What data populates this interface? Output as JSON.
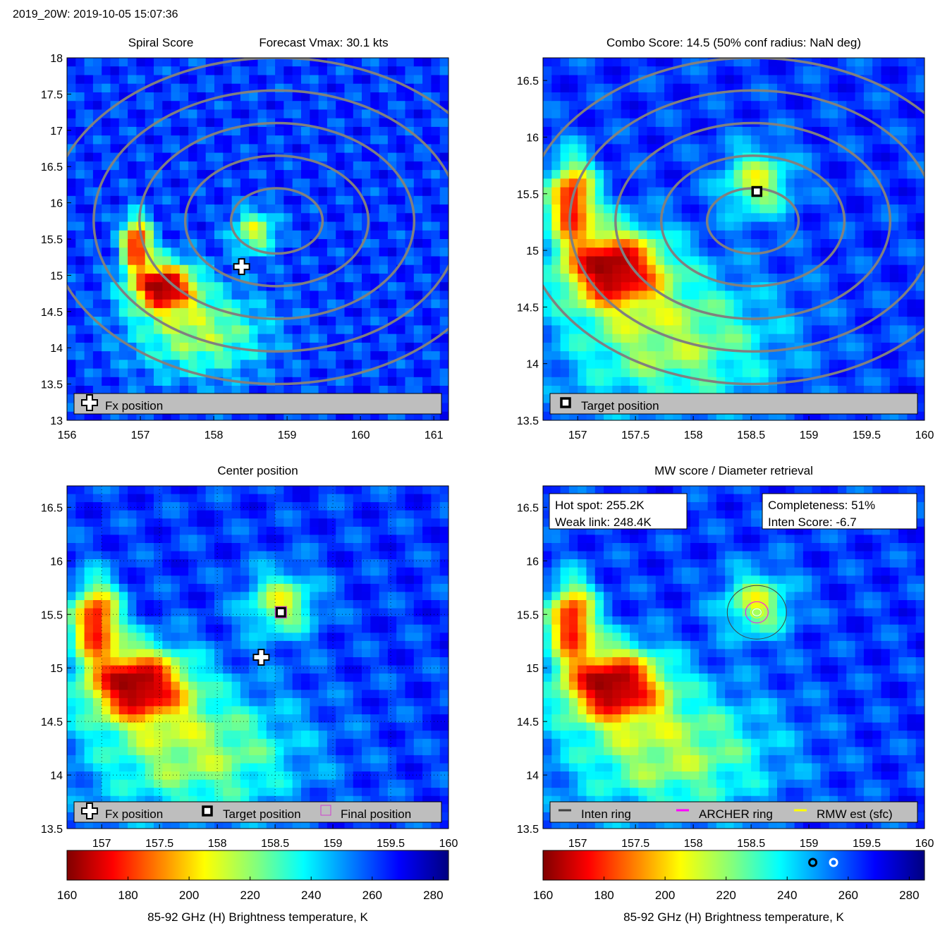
{
  "figure_title": "2019_20W: 2019-10-05 15:07:36",
  "colorbar_label": "85-92 GHz (H) Brightness temperature, K",
  "chart_data": [
    {
      "type": "heatmap",
      "title": "Spiral Score",
      "subtitle": "Forecast Vmax: 30.1 kts",
      "xlim": [
        156,
        161.2
      ],
      "ylim": [
        13,
        18
      ],
      "xticks": [
        156,
        157,
        158,
        159,
        160,
        161
      ],
      "yticks": [
        13,
        13.5,
        14,
        14.5,
        15,
        15.5,
        16,
        16.5,
        17,
        17.5,
        18
      ],
      "grid": false,
      "markers": [
        {
          "kind": "fx",
          "lon": 158.38,
          "lat": 15.12
        }
      ],
      "legend": [
        {
          "kind": "fx",
          "label": "Fx position"
        }
      ],
      "contours": true
    },
    {
      "type": "heatmap",
      "title": "Combo Score: 14.5  (50% conf radius: NaN deg)",
      "xlim": [
        156.7,
        160
      ],
      "ylim": [
        13.5,
        16.7
      ],
      "xticks": [
        157,
        157.5,
        158,
        158.5,
        159,
        159.5,
        160
      ],
      "yticks": [
        13.5,
        14,
        14.5,
        15,
        15.5,
        16,
        16.5
      ],
      "grid": false,
      "markers": [
        {
          "kind": "target",
          "lon": 158.55,
          "lat": 15.52
        }
      ],
      "legend": [
        {
          "kind": "target",
          "label": "Target position"
        }
      ],
      "contours": true
    },
    {
      "type": "heatmap",
      "title": "Center position",
      "xlim": [
        156.7,
        160
      ],
      "ylim": [
        13.5,
        16.7
      ],
      "xticks": [
        157,
        157.5,
        158,
        158.5,
        159,
        159.5,
        160
      ],
      "yticks": [
        13.5,
        14,
        14.5,
        15,
        15.5,
        16,
        16.5
      ],
      "grid": true,
      "markers": [
        {
          "kind": "fx",
          "lon": 158.38,
          "lat": 15.1
        },
        {
          "kind": "target",
          "lon": 158.55,
          "lat": 15.52
        },
        {
          "kind": "final",
          "lon": 158.55,
          "lat": 15.52
        }
      ],
      "legend": [
        {
          "kind": "fx",
          "label": "Fx position"
        },
        {
          "kind": "target",
          "label": "Target position"
        },
        {
          "kind": "final",
          "label": "Final position"
        }
      ],
      "contours": false
    },
    {
      "type": "heatmap",
      "title": "MW score / Diameter retrieval",
      "xlim": [
        156.7,
        160
      ],
      "ylim": [
        13.5,
        16.7
      ],
      "xticks": [
        157,
        157.5,
        158,
        158.5,
        159,
        159.5,
        160
      ],
      "yticks": [
        13.5,
        14,
        14.5,
        15,
        15.5,
        16,
        16.5
      ],
      "grid": false,
      "rings_center": {
        "lon": 158.55,
        "lat": 15.52
      },
      "info_left": [
        "Hot spot: 255.2K",
        "Weak link: 248.4K"
      ],
      "info_right": [
        "Completeness: 51%",
        "Inten Score: -6.7"
      ],
      "legend": [
        {
          "kind": "line",
          "color": "#404040",
          "label": "Inten ring"
        },
        {
          "kind": "line",
          "color": "#ff00ff",
          "label": "ARCHER ring"
        },
        {
          "kind": "line",
          "color": "#ffff00",
          "label": "RMW est (sfc)"
        }
      ],
      "contours": false
    }
  ],
  "colorbars": [
    {
      "ticks": [
        160,
        180,
        200,
        220,
        240,
        260,
        280
      ],
      "range": [
        160,
        285
      ]
    },
    {
      "ticks": [
        160,
        180,
        200,
        220,
        240,
        260,
        280
      ],
      "range": [
        160,
        285
      ],
      "markers": [
        {
          "value": 248.4,
          "color": "#000000"
        },
        {
          "value": 255.2,
          "color": "#ffffff"
        }
      ]
    }
  ],
  "colors": {
    "panel_bg": "#1560e0",
    "legend_bg": "#bebebe",
    "contour": "#808080"
  }
}
